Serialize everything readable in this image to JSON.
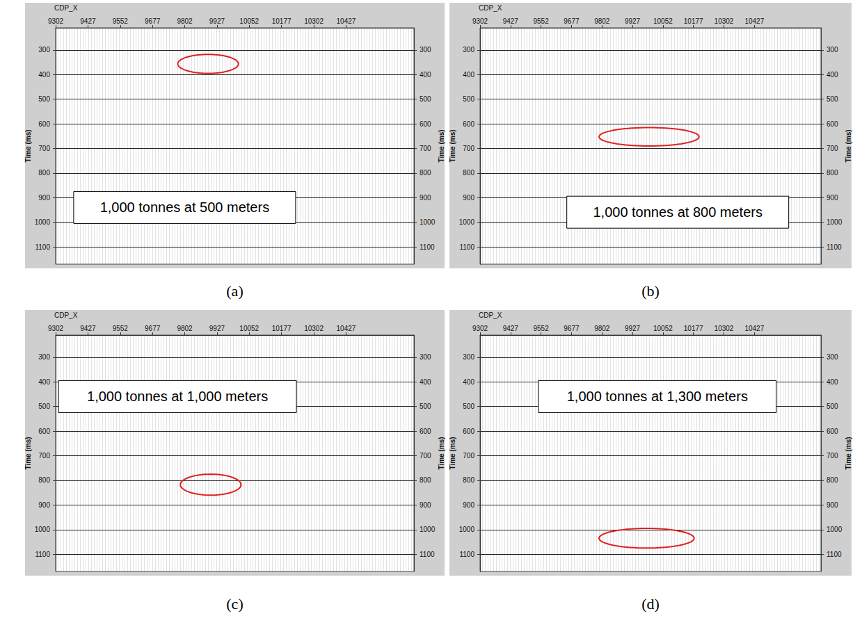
{
  "chart_data": [
    {
      "type": "seismic",
      "panel": "(a)",
      "title": "1,000 tonnes at 500 meters",
      "x_label": "CDP_X",
      "y_label": "Time (ms)",
      "xlim": [
        9302,
        10690
      ],
      "xticks": [
        9302,
        9427,
        9552,
        9677,
        9802,
        9927,
        10052,
        10177,
        10302,
        10427
      ],
      "ylim": [
        210,
        1170
      ],
      "yticks": [
        300,
        400,
        500,
        600,
        700,
        800,
        900,
        1000,
        1100
      ],
      "grid": true,
      "color": "#e02020",
      "highlight_ellipse": {
        "x": [
          9775,
          10010
        ],
        "y": [
          318,
          395
        ]
      }
    },
    {
      "type": "seismic",
      "panel": "(b)",
      "title": "1,000 tonnes at 800 meters",
      "x_label": "CDP_X",
      "y_label": "Time (ms)",
      "xlim": [
        9302,
        10700
      ],
      "xticks": [
        9302,
        9427,
        9552,
        9677,
        9802,
        9927,
        10052,
        10177,
        10302,
        10427
      ],
      "ylim": [
        210,
        1170
      ],
      "yticks": [
        300,
        400,
        500,
        600,
        700,
        800,
        900,
        1000,
        1100
      ],
      "grid": true,
      "color": "#e02020",
      "highlight_ellipse": {
        "x": [
          9790,
          10200
        ],
        "y": [
          615,
          690
        ]
      }
    },
    {
      "type": "seismic",
      "panel": "(c)",
      "title": "1,000 tonnes at 1,000 meters",
      "x_label": "CDP_X",
      "y_label": "Time (ms)",
      "xlim": [
        9302,
        10690
      ],
      "xticks": [
        9302,
        9427,
        9552,
        9677,
        9802,
        9927,
        10052,
        10177,
        10302,
        10427
      ],
      "ylim": [
        210,
        1170
      ],
      "yticks": [
        300,
        400,
        500,
        600,
        700,
        800,
        900,
        1000,
        1100
      ],
      "grid": true,
      "color": "#e02020",
      "highlight_ellipse": {
        "x": [
          9785,
          10020
        ],
        "y": [
          775,
          860
        ]
      }
    },
    {
      "type": "seismic",
      "panel": "(d)",
      "title": "1,000 tonnes at 1,300 meters",
      "x_label": "CDP_X",
      "y_label": "Time (ms)",
      "xlim": [
        9302,
        10700
      ],
      "xticks": [
        9302,
        9427,
        9552,
        9677,
        9802,
        9927,
        10052,
        10177,
        10302,
        10427
      ],
      "ylim": [
        210,
        1170
      ],
      "yticks": [
        300,
        400,
        500,
        600,
        700,
        800,
        900,
        1000,
        1100
      ],
      "grid": true,
      "color": "#e02020",
      "highlight_ellipse": {
        "x": [
          9790,
          10180
        ],
        "y": [
          995,
          1075
        ]
      }
    }
  ]
}
